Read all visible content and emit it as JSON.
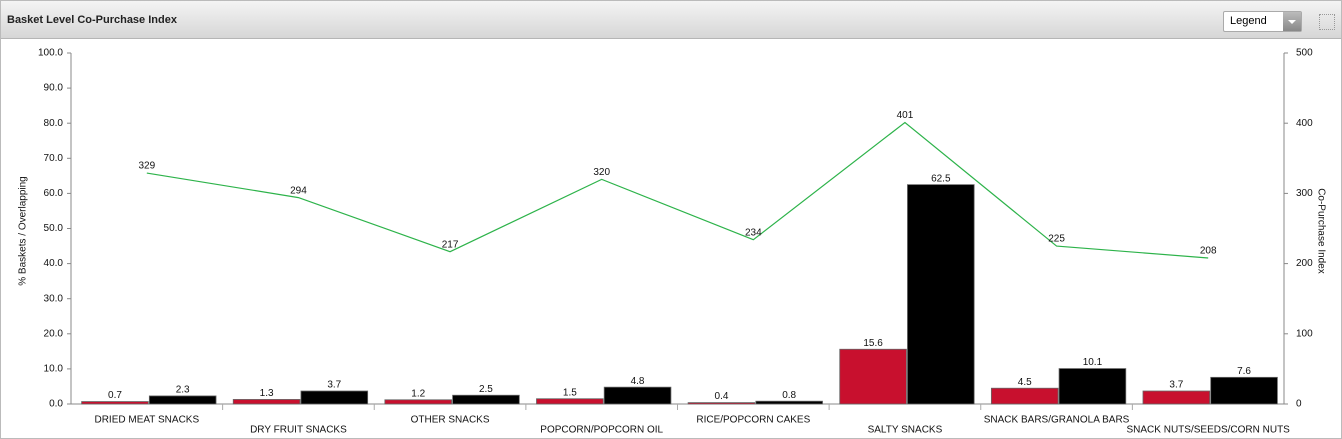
{
  "legend_button": "Legend",
  "chart_data": {
    "type": "bar",
    "title": "Basket Level Co-Purchase Index",
    "ylabel": "% Baskets / Overlapping",
    "y2label": "Co-Purchase Index",
    "categories": [
      "DRIED MEAT SNACKS",
      "DRY FRUIT SNACKS",
      "OTHER SNACKS",
      "POPCORN/POPCORN OIL",
      "RICE/POPCORN CAKES",
      "SALTY SNACKS",
      "SNACK BARS/GRANOLA BARS",
      "SNACK NUTS/SEEDS/CORN NUTS"
    ],
    "series": [
      {
        "color": "#c8102e",
        "values": [
          0.7,
          1.3,
          1.2,
          1.5,
          0.4,
          15.6,
          4.5,
          3.7
        ]
      },
      {
        "color": "#000000",
        "values": [
          2.3,
          3.7,
          2.5,
          4.8,
          0.8,
          62.5,
          10.1,
          7.6
        ]
      },
      {
        "type": "line",
        "axis": "y2",
        "color": "#2db34a",
        "values": [
          329,
          294,
          217,
          320,
          234,
          401,
          225,
          208
        ]
      }
    ],
    "ylim": [
      0,
      100
    ],
    "yticks": [
      {
        "value": 0,
        "label": "0.0"
      },
      {
        "value": 10,
        "label": "10.0"
      },
      {
        "value": 20,
        "label": "20.0"
      },
      {
        "value": 30,
        "label": "30.0"
      },
      {
        "value": 40,
        "label": "40.0"
      },
      {
        "value": 50,
        "label": "50.0"
      },
      {
        "value": 60,
        "label": "60.0"
      },
      {
        "value": 70,
        "label": "70.0"
      },
      {
        "value": 80,
        "label": "80.0"
      },
      {
        "value": 90,
        "label": "90.0"
      },
      {
        "value": 100,
        "label": "100.0"
      }
    ],
    "y2lim": [
      0,
      500
    ],
    "y2ticks": [
      0,
      100,
      200,
      300,
      400,
      500
    ]
  }
}
